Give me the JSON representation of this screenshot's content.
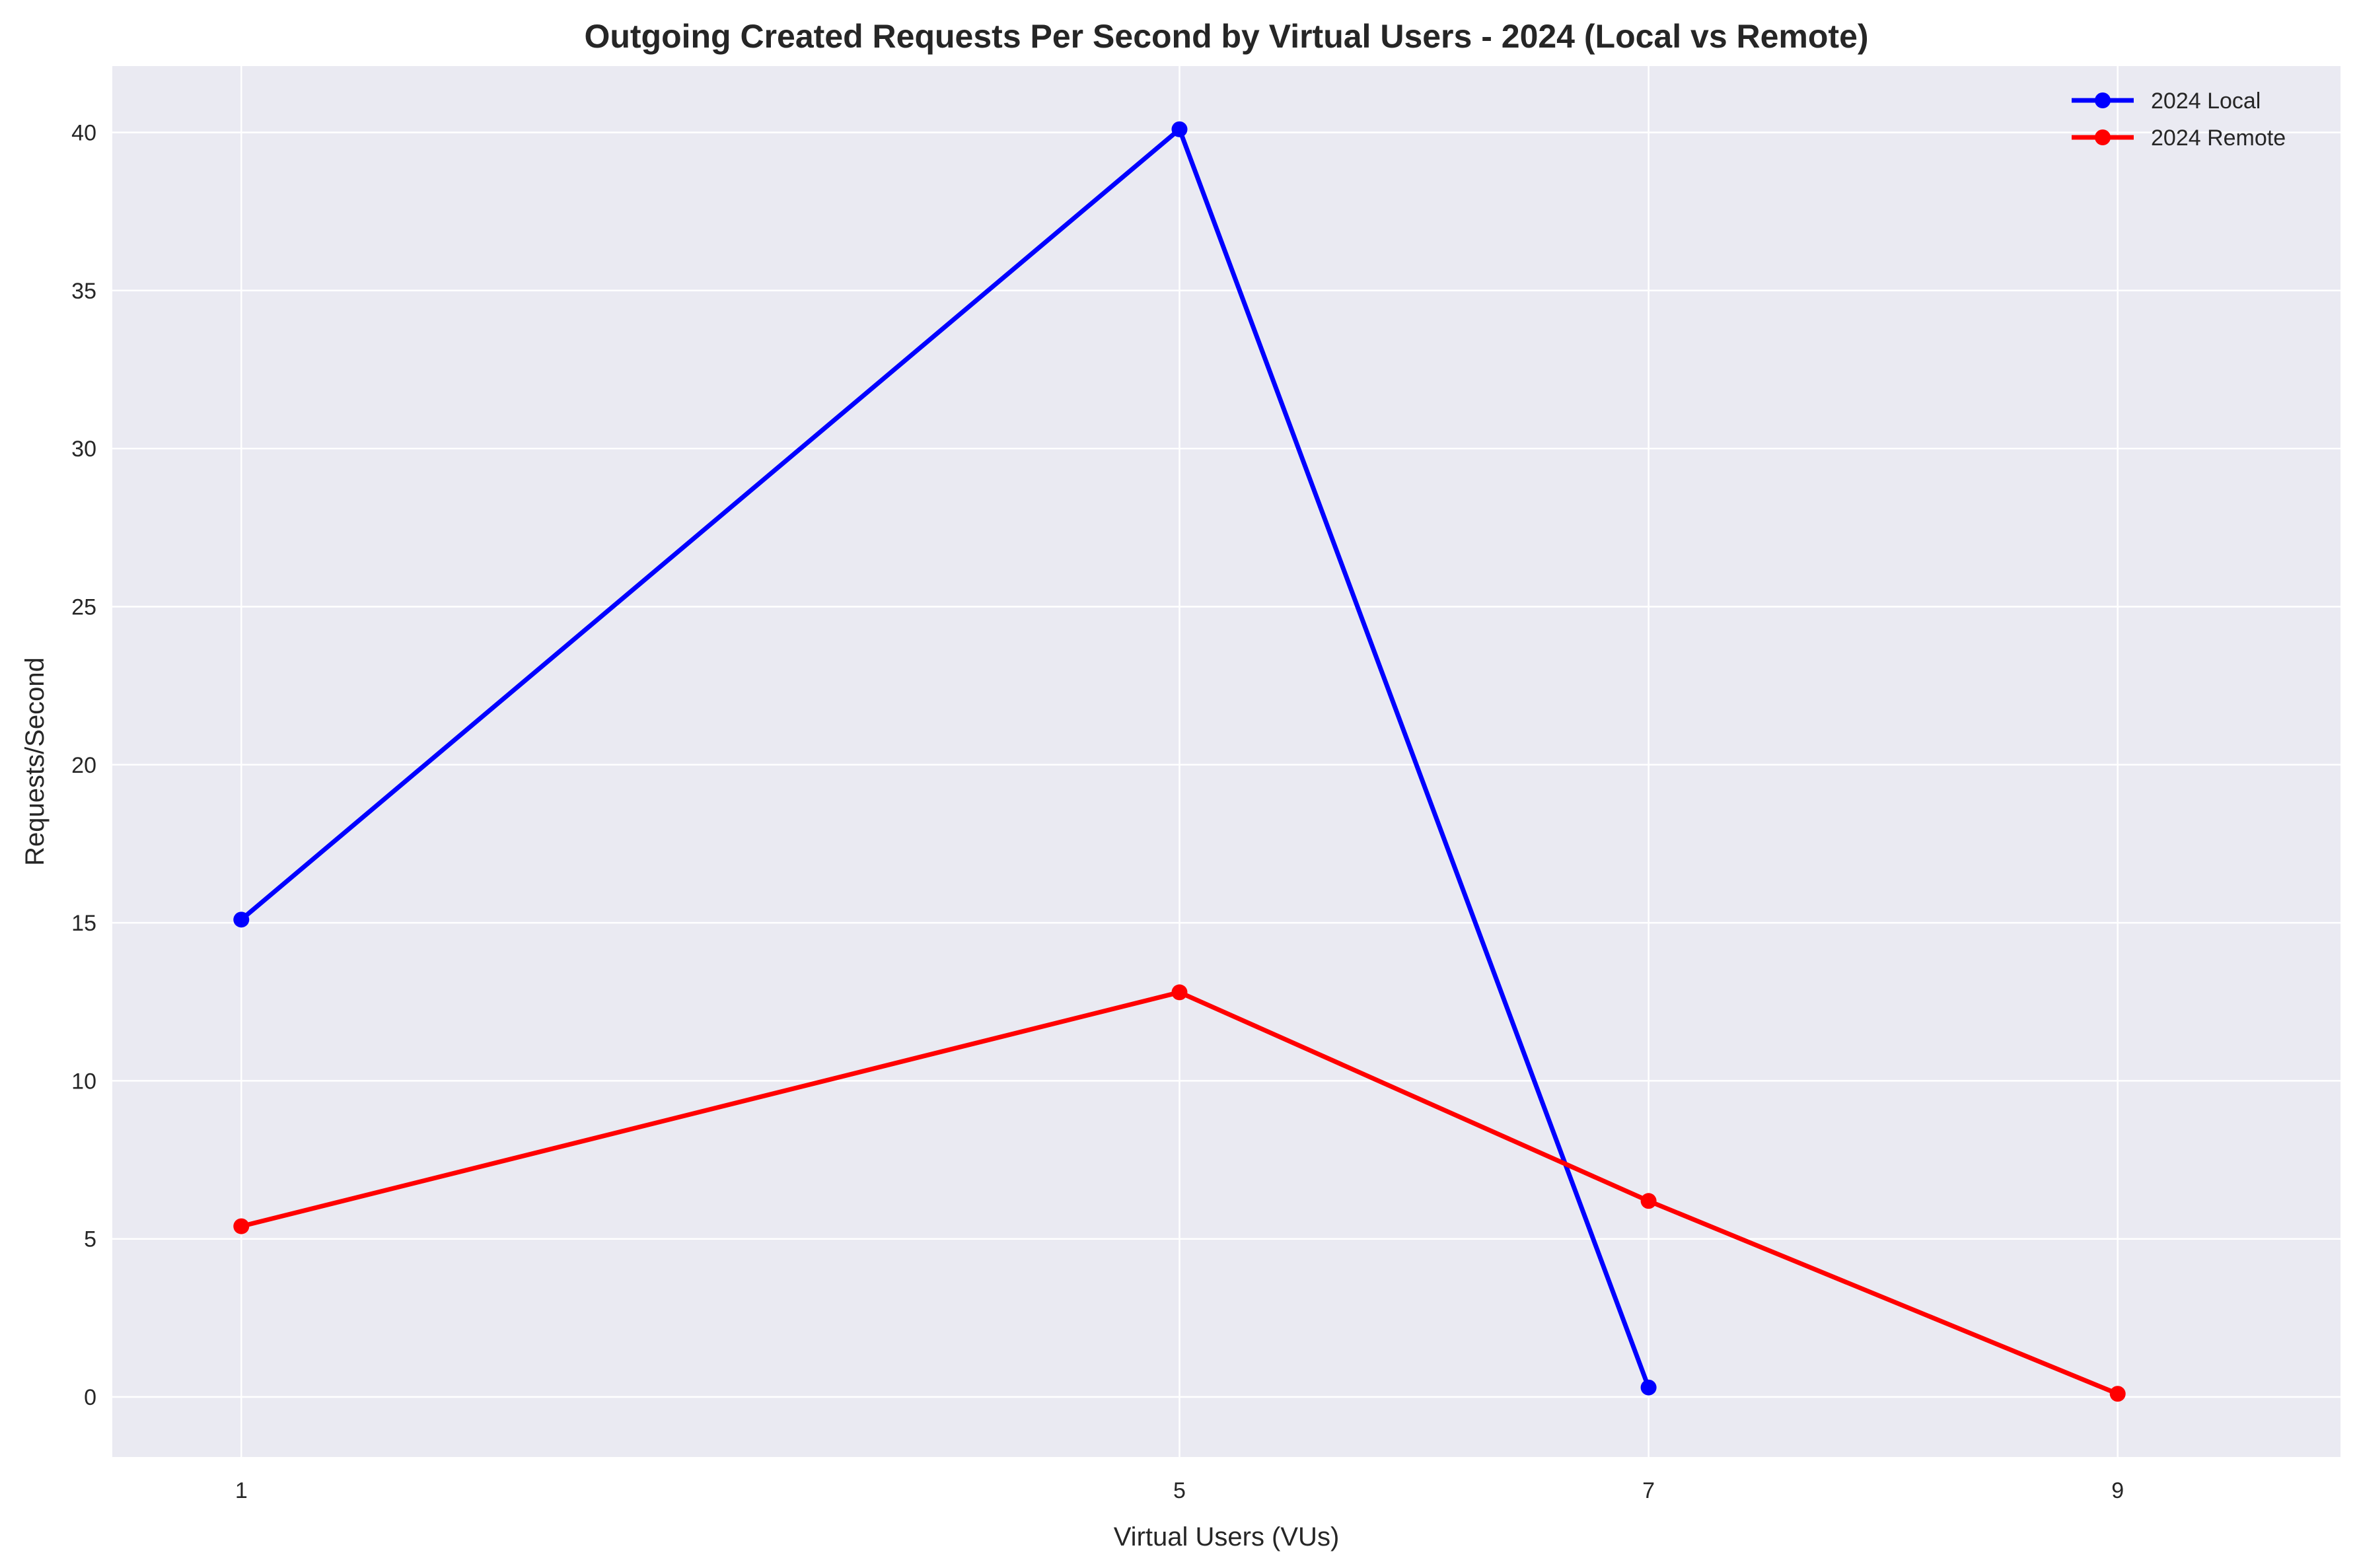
{
  "chart_data": {
    "type": "line",
    "title": "Outgoing Created Requests Per Second by Virtual Users - 2024 (Local vs Remote)",
    "xlabel": "Virtual Users (VUs)",
    "ylabel": "Requests/Second",
    "xlim": [
      0.45,
      9.95
    ],
    "ylim": [
      -1.9,
      42.1
    ],
    "xticks": [
      1,
      5,
      7,
      9
    ],
    "yticks": [
      0,
      5,
      10,
      15,
      20,
      25,
      30,
      35,
      40
    ],
    "grid": true,
    "legend_position": "top-right",
    "series": [
      {
        "name": "2024 Local",
        "color": "#0000ff",
        "x": [
          1,
          5,
          7
        ],
        "y": [
          15.1,
          40.1,
          0.3
        ]
      },
      {
        "name": "2024 Remote",
        "color": "#ff0000",
        "x": [
          1,
          5,
          7,
          9
        ],
        "y": [
          5.4,
          12.8,
          6.2,
          0.1
        ]
      }
    ]
  },
  "colors": {
    "plot_background": "#eaeaf2",
    "grid": "#ffffff"
  }
}
